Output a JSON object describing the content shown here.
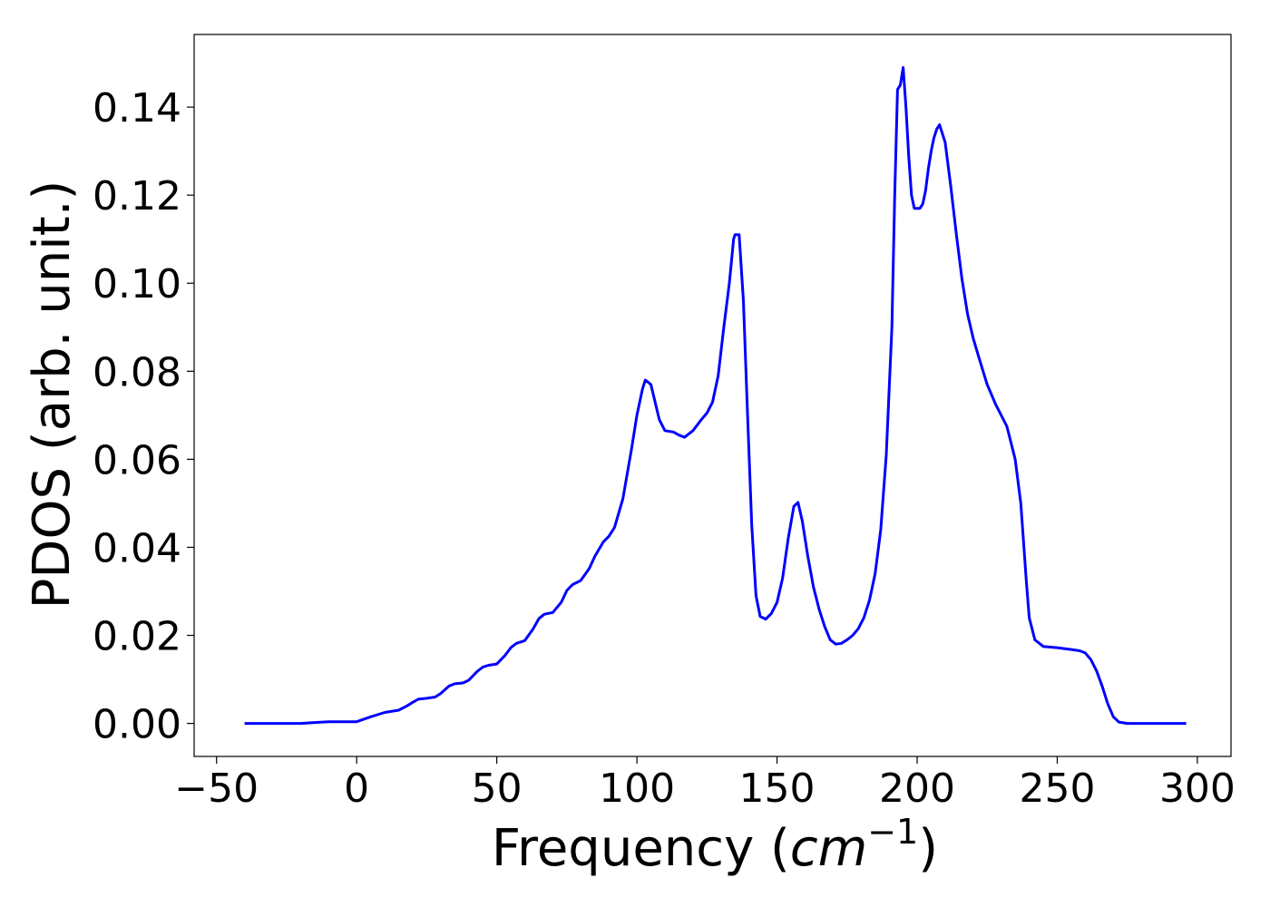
{
  "chart_data": {
    "type": "line",
    "title": "",
    "xlabel": "Frequency (",
    "xlabel_math_base": "cm",
    "xlabel_math_exponent": "−1",
    "xlabel_close": ")",
    "ylabel": "PDOS (arb. unit.)",
    "xlim": [
      -58,
      312
    ],
    "ylim": [
      -0.0075,
      0.1565
    ],
    "xticks": [
      -50,
      0,
      50,
      100,
      150,
      200,
      250,
      300
    ],
    "xtick_labels": [
      "−50",
      "0",
      "50",
      "100",
      "150",
      "200",
      "250",
      "300"
    ],
    "yticks": [
      0.0,
      0.02,
      0.04,
      0.06,
      0.08,
      0.1,
      0.12,
      0.14
    ],
    "ytick_labels": [
      "0.00",
      "0.02",
      "0.04",
      "0.06",
      "0.08",
      "0.10",
      "0.12",
      "0.14"
    ],
    "grid": false,
    "legend": "none",
    "series": [
      {
        "color": "#0000ff",
        "x": [
          -40,
          -20,
          -15,
          -10,
          -8,
          -5,
          0,
          5,
          10,
          15,
          18,
          20,
          22,
          25,
          28,
          30,
          33,
          35,
          38,
          40,
          43,
          45,
          47,
          50,
          53,
          55,
          57,
          60,
          63,
          65,
          67,
          70,
          73,
          75,
          77,
          80,
          83,
          85,
          88,
          90,
          92,
          95,
          98,
          100,
          102,
          103,
          105,
          108,
          110,
          113,
          115,
          117,
          120,
          123,
          125,
          127,
          129,
          131,
          133,
          134.5,
          135,
          136.5,
          138,
          139.5,
          141,
          142.5,
          144,
          146,
          148,
          150,
          152,
          154,
          156,
          157.5,
          159,
          161,
          163,
          165,
          167,
          169,
          171,
          173,
          175,
          177,
          179,
          181,
          183,
          185,
          187,
          189,
          191,
          192,
          193,
          194,
          195,
          196,
          197,
          198,
          199,
          200,
          201,
          202,
          203,
          204,
          205,
          206,
          207,
          208,
          209,
          210,
          212,
          214,
          216,
          218,
          220,
          222,
          225,
          228,
          230,
          232,
          233,
          235,
          237,
          239,
          240,
          242,
          245,
          250,
          255,
          258,
          260,
          262,
          264,
          266,
          268,
          270,
          272,
          275,
          280,
          290,
          296
        ],
        "y": [
          0.0,
          0.0,
          0.0002,
          0.0004,
          0.0004,
          0.0004,
          0.0004,
          0.0015,
          0.0025,
          0.003,
          0.004,
          0.0048,
          0.0055,
          0.0057,
          0.006,
          0.0068,
          0.0085,
          0.009,
          0.0092,
          0.0098,
          0.0118,
          0.0128,
          0.0132,
          0.0135,
          0.0155,
          0.0172,
          0.0182,
          0.0188,
          0.0215,
          0.0238,
          0.0248,
          0.0252,
          0.0275,
          0.0302,
          0.0315,
          0.0325,
          0.0352,
          0.038,
          0.0412,
          0.0425,
          0.0445,
          0.051,
          0.062,
          0.07,
          0.076,
          0.078,
          0.077,
          0.069,
          0.0665,
          0.0662,
          0.0655,
          0.065,
          0.0665,
          0.069,
          0.0705,
          0.073,
          0.079,
          0.09,
          0.1,
          0.11,
          0.111,
          0.111,
          0.096,
          0.07,
          0.045,
          0.029,
          0.0243,
          0.0237,
          0.025,
          0.0275,
          0.033,
          0.042,
          0.0493,
          0.0502,
          0.046,
          0.038,
          0.031,
          0.026,
          0.022,
          0.019,
          0.018,
          0.0182,
          0.019,
          0.02,
          0.0215,
          0.024,
          0.028,
          0.034,
          0.044,
          0.061,
          0.09,
          0.12,
          0.144,
          0.145,
          0.149,
          0.14,
          0.129,
          0.12,
          0.117,
          0.117,
          0.117,
          0.118,
          0.121,
          0.126,
          0.13,
          0.133,
          0.135,
          0.136,
          0.134,
          0.132,
          0.122,
          0.111,
          0.101,
          0.093,
          0.0875,
          0.0832,
          0.077,
          0.0725,
          0.07,
          0.0675,
          0.065,
          0.06,
          0.05,
          0.032,
          0.024,
          0.019,
          0.0175,
          0.0172,
          0.0168,
          0.0165,
          0.016,
          0.0145,
          0.012,
          0.0085,
          0.0045,
          0.0015,
          0.0003,
          0.0,
          0.0,
          0.0,
          0.0
        ]
      }
    ]
  }
}
